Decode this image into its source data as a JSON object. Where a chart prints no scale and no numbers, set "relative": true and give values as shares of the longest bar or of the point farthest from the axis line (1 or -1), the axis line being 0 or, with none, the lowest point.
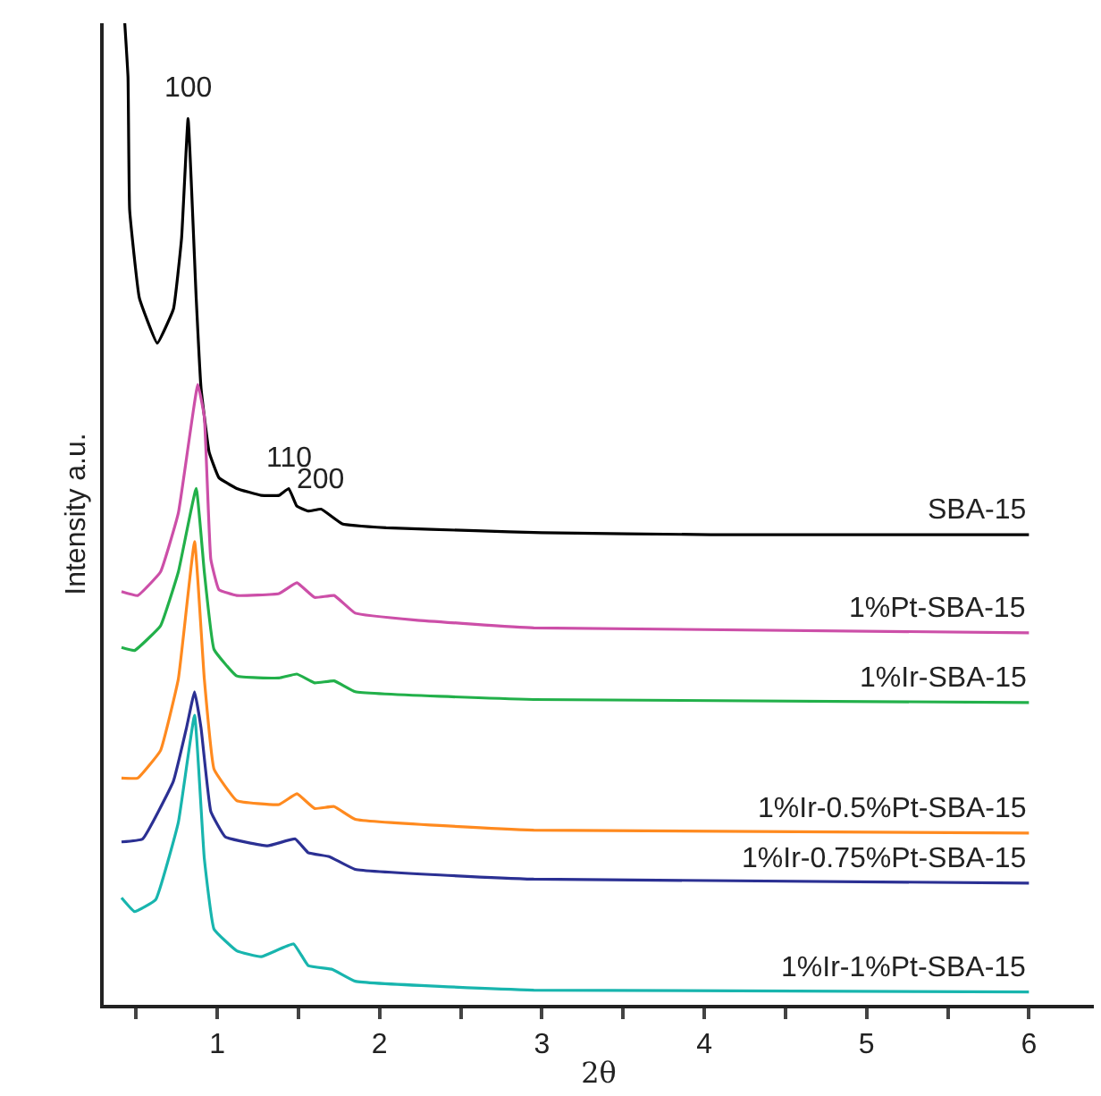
{
  "chart_data": {
    "type": "line",
    "relative": true,
    "xlabel": "2θ",
    "ylabel": "Intensity a.u.",
    "xlim": [
      0.3,
      6.4
    ],
    "xticks": [
      {
        "value": 0.5,
        "label": null
      },
      1,
      {
        "value": 1.5,
        "label": null
      },
      2,
      {
        "value": 2.5,
        "label": null
      },
      3,
      {
        "value": 3.5,
        "label": null
      },
      4,
      {
        "value": 4.5,
        "label": null
      },
      5,
      {
        "value": 5.5,
        "label": null
      },
      6
    ],
    "tick_labels": "x",
    "legend": false,
    "annotations": [
      {
        "text": "100",
        "x": 0.82,
        "y": 0.903
      },
      {
        "text": "110",
        "x": 1.44,
        "y": 0.526
      },
      {
        "text": "200",
        "x": 1.64,
        "y": 0.505
      }
    ],
    "series": [
      {
        "name": "SBA-15",
        "color": "#000000",
        "x": [
          0.43,
          0.45,
          0.46,
          0.52,
          0.63,
          0.73,
          0.78,
          0.82,
          0.87,
          0.9,
          0.95,
          1.01,
          1.12,
          1.27,
          1.38,
          1.44,
          1.49,
          1.56,
          1.64,
          1.77,
          2.04,
          2.59,
          3.0,
          4.04,
          6.0
        ],
        "values": [
          1.0,
          0.945,
          0.81,
          0.72,
          0.674,
          0.709,
          0.781,
          0.903,
          0.72,
          0.628,
          0.563,
          0.537,
          0.526,
          0.519,
          0.519,
          0.526,
          0.508,
          0.503,
          0.505,
          0.49,
          0.486,
          0.483,
          0.481,
          0.479,
          0.479
        ]
      },
      {
        "name": "1%Pt-SBA-15",
        "color": "#cc4fa8",
        "x": [
          0.41,
          0.51,
          0.65,
          0.76,
          0.88,
          0.92,
          0.96,
          1.01,
          1.12,
          1.38,
          1.49,
          1.6,
          1.72,
          1.85,
          2.22,
          2.95,
          6.0
        ],
        "values": [
          0.421,
          0.417,
          0.441,
          0.501,
          0.632,
          0.599,
          0.454,
          0.423,
          0.417,
          0.419,
          0.43,
          0.415,
          0.417,
          0.399,
          0.392,
          0.384,
          0.379
        ]
      },
      {
        "name": "1%Ir-SBA-15",
        "color": "#22b04a",
        "x": [
          0.41,
          0.49,
          0.65,
          0.76,
          0.87,
          0.92,
          0.98,
          1.12,
          1.38,
          1.49,
          1.6,
          1.72,
          1.85,
          2.95,
          6.0
        ],
        "values": [
          0.364,
          0.361,
          0.386,
          0.441,
          0.526,
          0.441,
          0.362,
          0.335,
          0.333,
          0.337,
          0.328,
          0.33,
          0.319,
          0.311,
          0.308
        ]
      },
      {
        "name": "1%Ir-0.5%Pt-SBA-15",
        "color": "#ff8a1f",
        "x": [
          0.41,
          0.51,
          0.65,
          0.76,
          0.86,
          0.92,
          0.98,
          1.12,
          1.38,
          1.49,
          1.6,
          1.72,
          1.85,
          2.95,
          6.0
        ],
        "values": [
          0.231,
          0.231,
          0.259,
          0.332,
          0.472,
          0.332,
          0.24,
          0.208,
          0.204,
          0.215,
          0.2,
          0.202,
          0.189,
          0.178,
          0.175
        ]
      },
      {
        "name": "1%Ir-0.75%Pt-SBA-15",
        "color": "#2b3093",
        "x": [
          0.41,
          0.54,
          0.73,
          0.81,
          0.86,
          0.9,
          0.96,
          1.05,
          1.31,
          1.48,
          1.56,
          1.69,
          1.85,
          2.95,
          6.0
        ],
        "values": [
          0.166,
          0.169,
          0.228,
          0.282,
          0.319,
          0.282,
          0.197,
          0.171,
          0.162,
          0.169,
          0.155,
          0.151,
          0.138,
          0.128,
          0.124
        ]
      },
      {
        "name": "1%Ir-1%Pt-SBA-15",
        "color": "#18b5ae",
        "x": [
          0.41,
          0.49,
          0.62,
          0.76,
          0.86,
          0.92,
          0.98,
          1.12,
          1.27,
          1.47,
          1.56,
          1.71,
          1.85,
          2.95,
          6.0
        ],
        "values": [
          0.109,
          0.095,
          0.107,
          0.186,
          0.295,
          0.149,
          0.077,
          0.055,
          0.049,
          0.062,
          0.04,
          0.036,
          0.024,
          0.015,
          0.013
        ]
      }
    ]
  }
}
